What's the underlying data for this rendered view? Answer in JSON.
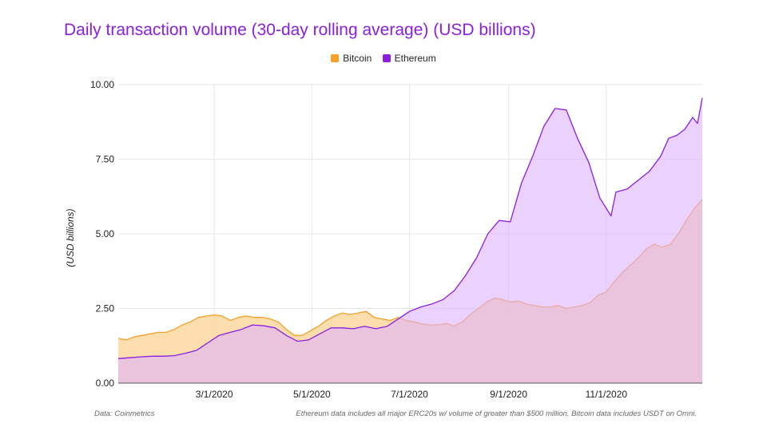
{
  "chart_data": {
    "type": "area",
    "title": "Daily transaction volume (30-day rolling average) (USD billions)",
    "ylabel": "(USD billions)",
    "xlabel": "",
    "ylim": [
      0,
      10
    ],
    "xlim": [
      "2020-01-01",
      "2020-12-31"
    ],
    "y_ticks": [
      {
        "value": 0,
        "label": "0.00"
      },
      {
        "value": 2.5,
        "label": "2.50"
      },
      {
        "value": 5,
        "label": "5.00"
      },
      {
        "value": 7.5,
        "label": "7.50"
      },
      {
        "value": 10,
        "label": "10.00"
      }
    ],
    "x_ticks": [
      {
        "value": "2020-03-01",
        "label": "3/1/2020"
      },
      {
        "value": "2020-05-01",
        "label": "5/1/2020"
      },
      {
        "value": "2020-07-01",
        "label": "7/1/2020"
      },
      {
        "value": "2020-09-01",
        "label": "9/1/2020"
      },
      {
        "value": "2020-11-01",
        "label": "11/1/2020"
      }
    ],
    "grid": true,
    "legend_position": "top",
    "series": [
      {
        "name": "Bitcoin",
        "color": "#f4a22a",
        "fill": "#fcd9a4",
        "points": [
          [
            "2020-01-01",
            1.5
          ],
          [
            "2020-01-06",
            1.45
          ],
          [
            "2020-01-11",
            1.55
          ],
          [
            "2020-01-16",
            1.6
          ],
          [
            "2020-01-21",
            1.65
          ],
          [
            "2020-01-26",
            1.7
          ],
          [
            "2020-01-31",
            1.7
          ],
          [
            "2020-02-05",
            1.8
          ],
          [
            "2020-02-10",
            1.95
          ],
          [
            "2020-02-15",
            2.05
          ],
          [
            "2020-02-20",
            2.2
          ],
          [
            "2020-02-25",
            2.25
          ],
          [
            "2020-03-01",
            2.28
          ],
          [
            "2020-03-06",
            2.25
          ],
          [
            "2020-03-11",
            2.1
          ],
          [
            "2020-03-16",
            2.2
          ],
          [
            "2020-03-21",
            2.25
          ],
          [
            "2020-03-26",
            2.2
          ],
          [
            "2020-03-31",
            2.2
          ],
          [
            "2020-04-05",
            2.15
          ],
          [
            "2020-04-10",
            2.05
          ],
          [
            "2020-04-15",
            1.8
          ],
          [
            "2020-04-20",
            1.6
          ],
          [
            "2020-04-25",
            1.6
          ],
          [
            "2020-04-30",
            1.75
          ],
          [
            "2020-05-05",
            1.9
          ],
          [
            "2020-05-10",
            2.1
          ],
          [
            "2020-05-15",
            2.25
          ],
          [
            "2020-05-20",
            2.35
          ],
          [
            "2020-05-25",
            2.3
          ],
          [
            "2020-05-30",
            2.35
          ],
          [
            "2020-06-04",
            2.4
          ],
          [
            "2020-06-09",
            2.2
          ],
          [
            "2020-06-14",
            2.15
          ],
          [
            "2020-06-19",
            2.1
          ],
          [
            "2020-06-24",
            2.2
          ],
          [
            "2020-06-29",
            2.1
          ],
          [
            "2020-07-04",
            2.05
          ],
          [
            "2020-07-09",
            1.98
          ],
          [
            "2020-07-14",
            1.95
          ],
          [
            "2020-07-19",
            1.95
          ],
          [
            "2020-07-24",
            2.0
          ],
          [
            "2020-07-29",
            1.92
          ],
          [
            "2020-08-03",
            2.05
          ],
          [
            "2020-08-08",
            2.3
          ],
          [
            "2020-08-13",
            2.5
          ],
          [
            "2020-08-18",
            2.7
          ],
          [
            "2020-08-23",
            2.85
          ],
          [
            "2020-08-28",
            2.8
          ],
          [
            "2020-09-02",
            2.72
          ],
          [
            "2020-09-07",
            2.75
          ],
          [
            "2020-09-12",
            2.65
          ],
          [
            "2020-09-17",
            2.6
          ],
          [
            "2020-09-22",
            2.55
          ],
          [
            "2020-09-27",
            2.55
          ],
          [
            "2020-10-02",
            2.6
          ],
          [
            "2020-10-07",
            2.5
          ],
          [
            "2020-10-12",
            2.55
          ],
          [
            "2020-10-17",
            2.6
          ],
          [
            "2020-10-22",
            2.7
          ],
          [
            "2020-10-27",
            2.95
          ],
          [
            "2020-11-01",
            3.05
          ],
          [
            "2020-11-06",
            3.4
          ],
          [
            "2020-11-11",
            3.7
          ],
          [
            "2020-11-16",
            3.95
          ],
          [
            "2020-11-21",
            4.2
          ],
          [
            "2020-11-26",
            4.5
          ],
          [
            "2020-12-01",
            4.65
          ],
          [
            "2020-12-06",
            4.55
          ],
          [
            "2020-12-11",
            4.65
          ],
          [
            "2020-12-16",
            5.0
          ],
          [
            "2020-12-21",
            5.45
          ],
          [
            "2020-12-26",
            5.85
          ],
          [
            "2020-12-31",
            6.15
          ]
        ]
      },
      {
        "name": "Ethereum",
        "color": "#8b1fe0",
        "fill": "#ddb2fd",
        "points": [
          [
            "2020-01-01",
            0.82
          ],
          [
            "2020-01-08",
            0.85
          ],
          [
            "2020-01-15",
            0.88
          ],
          [
            "2020-01-22",
            0.9
          ],
          [
            "2020-01-29",
            0.9
          ],
          [
            "2020-02-05",
            0.92
          ],
          [
            "2020-02-12",
            1.0
          ],
          [
            "2020-02-19",
            1.1
          ],
          [
            "2020-02-26",
            1.35
          ],
          [
            "2020-03-04",
            1.6
          ],
          [
            "2020-03-11",
            1.7
          ],
          [
            "2020-03-18",
            1.8
          ],
          [
            "2020-03-25",
            1.95
          ],
          [
            "2020-04-01",
            1.92
          ],
          [
            "2020-04-08",
            1.85
          ],
          [
            "2020-04-15",
            1.6
          ],
          [
            "2020-04-22",
            1.4
          ],
          [
            "2020-04-29",
            1.45
          ],
          [
            "2020-05-06",
            1.65
          ],
          [
            "2020-05-13",
            1.85
          ],
          [
            "2020-05-20",
            1.85
          ],
          [
            "2020-05-27",
            1.82
          ],
          [
            "2020-06-03",
            1.9
          ],
          [
            "2020-06-10",
            1.82
          ],
          [
            "2020-06-17",
            1.9
          ],
          [
            "2020-06-24",
            2.15
          ],
          [
            "2020-07-01",
            2.4
          ],
          [
            "2020-07-08",
            2.55
          ],
          [
            "2020-07-15",
            2.65
          ],
          [
            "2020-07-22",
            2.8
          ],
          [
            "2020-07-29",
            3.1
          ],
          [
            "2020-08-05",
            3.6
          ],
          [
            "2020-08-12",
            4.2
          ],
          [
            "2020-08-19",
            5.0
          ],
          [
            "2020-08-26",
            5.45
          ],
          [
            "2020-09-02",
            5.4
          ],
          [
            "2020-09-09",
            6.7
          ],
          [
            "2020-09-16",
            7.6
          ],
          [
            "2020-09-23",
            8.6
          ],
          [
            "2020-09-30",
            9.2
          ],
          [
            "2020-10-07",
            9.15
          ],
          [
            "2020-10-14",
            8.2
          ],
          [
            "2020-10-21",
            7.4
          ],
          [
            "2020-10-28",
            6.2
          ],
          [
            "2020-11-04",
            5.6
          ],
          [
            "2020-11-07",
            6.4
          ],
          [
            "2020-11-14",
            6.5
          ],
          [
            "2020-11-21",
            6.8
          ],
          [
            "2020-11-28",
            7.1
          ],
          [
            "2020-12-05",
            7.6
          ],
          [
            "2020-12-10",
            8.2
          ],
          [
            "2020-12-15",
            8.3
          ],
          [
            "2020-12-20",
            8.5
          ],
          [
            "2020-12-25",
            8.9
          ],
          [
            "2020-12-28",
            8.7
          ],
          [
            "2020-12-31",
            9.55
          ]
        ]
      }
    ],
    "notes": {
      "source": "Data: Coinmetrics",
      "footnote": "Ethereum data includes all major ERC20s w/ volume of greater than $500 million. Bitcoin data includes USDT on Omni."
    }
  }
}
